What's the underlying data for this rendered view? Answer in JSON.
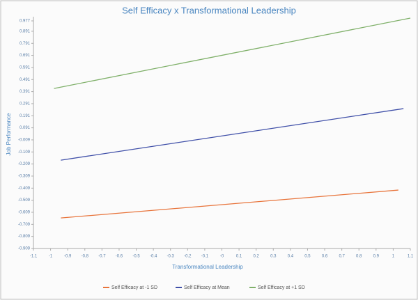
{
  "chart_data": {
    "type": "line",
    "title": "Self Efficacy x Transformational Leadership",
    "xlabel": "Transformational Leadership",
    "ylabel": "Job Performance",
    "series": [
      {
        "name": "Self Efficacy at -1 SD",
        "color": "#e8743b",
        "x": [
          -0.94,
          1.03
        ],
        "values": [
          -0.656,
          -0.425
        ]
      },
      {
        "name": "Self Efficacy at Mean",
        "color": "#3f4fa8",
        "x": [
          -0.94,
          1.06
        ],
        "values": [
          -0.177,
          0.25
        ]
      },
      {
        "name": "Self Efficacy at +1 SD",
        "color": "#7fb069",
        "x": [
          -0.98,
          1.1
        ],
        "values": [
          0.417,
          1.0
        ]
      }
    ],
    "xlim": [
      -1.1,
      1.1
    ],
    "xticks": [
      -1.1,
      -1,
      -0.9,
      -0.8,
      -0.7,
      -0.6,
      -0.5,
      -0.4,
      -0.3,
      -0.2,
      -0.1,
      {
        "value": 0,
        "label": "-0"
      },
      0.1,
      0.2,
      0.3,
      0.4,
      0.5,
      0.6,
      0.7,
      0.8,
      0.9,
      1,
      1.1
    ],
    "ylim": [
      -0.909,
      0.977
    ],
    "yticks": [
      0.977,
      0.891,
      0.791,
      0.691,
      0.591,
      0.491,
      0.391,
      0.291,
      0.191,
      0.091,
      -0.009,
      -0.109,
      -0.209,
      -0.309,
      -0.409,
      -0.509,
      -0.609,
      -0.709,
      -0.809,
      -0.909
    ],
    "legend": "bottom"
  }
}
